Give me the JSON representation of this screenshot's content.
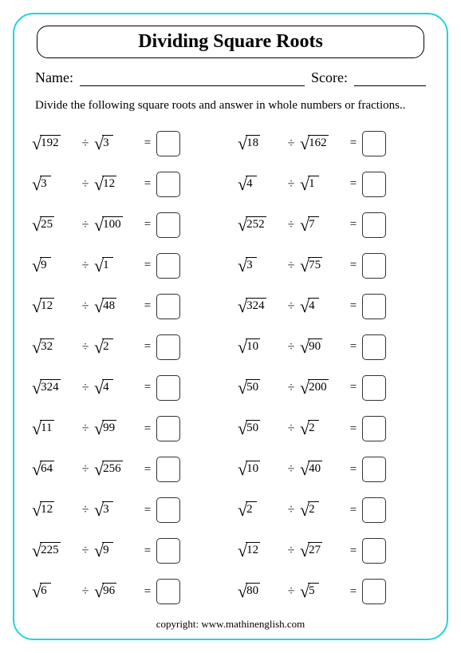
{
  "title": "Dividing Square Roots",
  "name_label": "Name:",
  "score_label": "Score:",
  "instructions": "Divide the following square roots and answer in whole numbers or fractions..",
  "divide_sign": "÷",
  "equals_sign": "=",
  "surd": "√",
  "copyright": "copyright:   www.mathinenglish.com",
  "problems_left": [
    {
      "a": "192",
      "b": "3"
    },
    {
      "a": "3",
      "b": "12"
    },
    {
      "a": "25",
      "b": "100"
    },
    {
      "a": "9",
      "b": "1"
    },
    {
      "a": "12",
      "b": "48"
    },
    {
      "a": "32",
      "b": "2"
    },
    {
      "a": "324",
      "b": "4"
    },
    {
      "a": "11",
      "b": "99"
    },
    {
      "a": "64",
      "b": "256"
    },
    {
      "a": "12",
      "b": "3"
    },
    {
      "a": "225",
      "b": "9"
    },
    {
      "a": "6",
      "b": "96"
    }
  ],
  "problems_right": [
    {
      "a": "18",
      "b": "162"
    },
    {
      "a": "4",
      "b": "1"
    },
    {
      "a": "252",
      "b": "7"
    },
    {
      "a": "3",
      "b": "75"
    },
    {
      "a": "324",
      "b": "4"
    },
    {
      "a": "10",
      "b": "90"
    },
    {
      "a": "50",
      "b": "200"
    },
    {
      "a": "50",
      "b": "2"
    },
    {
      "a": "10",
      "b": "40"
    },
    {
      "a": "2",
      "b": "2"
    },
    {
      "a": "12",
      "b": "27"
    },
    {
      "a": "80",
      "b": "5"
    }
  ],
  "colors": {
    "frame_border": "#22d3e0",
    "background": "#ffffff",
    "text": "#000000",
    "box_border": "#333333"
  }
}
